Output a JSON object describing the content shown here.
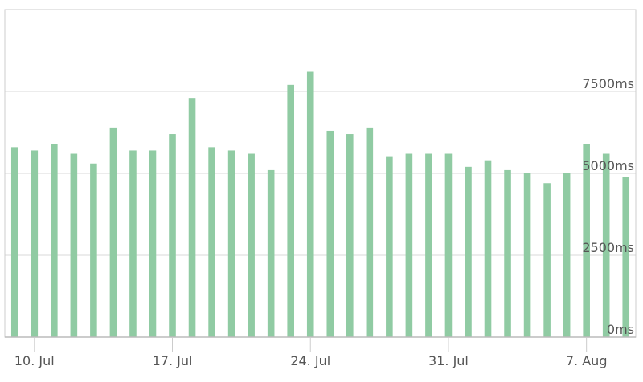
{
  "chart_data": {
    "type": "bar",
    "title": "",
    "xlabel": "",
    "ylabel": "",
    "y_unit": "ms",
    "ylim": [
      0,
      10000
    ],
    "y_ticks": [
      {
        "value": 0,
        "label": "0ms"
      },
      {
        "value": 2500,
        "label": "2500ms"
      },
      {
        "value": 5000,
        "label": "5000ms"
      },
      {
        "value": 7500,
        "label": "7500ms"
      }
    ],
    "x_range": [
      "2015-07-09",
      "2015-08-10"
    ],
    "x_ticks": [
      {
        "date": "2015-07-10",
        "label": "10. Jul"
      },
      {
        "date": "2015-07-17",
        "label": "17. Jul"
      },
      {
        "date": "2015-07-24",
        "label": "24. Jul"
      },
      {
        "date": "2015-07-31",
        "label": "31. Jul"
      },
      {
        "date": "2015-08-07",
        "label": "7. Aug"
      }
    ],
    "grid": true,
    "legend": "none",
    "colors": {
      "bar": "#90cba3",
      "grid": "#d9d9d9",
      "frame": "#cccccc",
      "tick_text": "#555555"
    },
    "series": [
      {
        "x": [
          "2015-07-09",
          "2015-07-10",
          "2015-07-11",
          "2015-07-12",
          "2015-07-13",
          "2015-07-14",
          "2015-07-15",
          "2015-07-16",
          "2015-07-17",
          "2015-07-18",
          "2015-07-19",
          "2015-07-20",
          "2015-07-21",
          "2015-07-22",
          "2015-07-23",
          "2015-07-24",
          "2015-07-25",
          "2015-07-26",
          "2015-07-27",
          "2015-07-28",
          "2015-07-29",
          "2015-07-30",
          "2015-07-31",
          "2015-08-01",
          "2015-08-02",
          "2015-08-03",
          "2015-08-04",
          "2015-08-05",
          "2015-08-06",
          "2015-08-07",
          "2015-08-08",
          "2015-08-09"
        ],
        "values": [
          5800,
          5700,
          5900,
          5600,
          5300,
          6400,
          5700,
          5700,
          6200,
          7300,
          5800,
          5700,
          5600,
          5100,
          7700,
          8100,
          6300,
          6200,
          6400,
          5500,
          5600,
          5600,
          5600,
          5200,
          5400,
          5100,
          5000,
          4700,
          5000,
          5900,
          5600,
          4900
        ]
      }
    ]
  }
}
